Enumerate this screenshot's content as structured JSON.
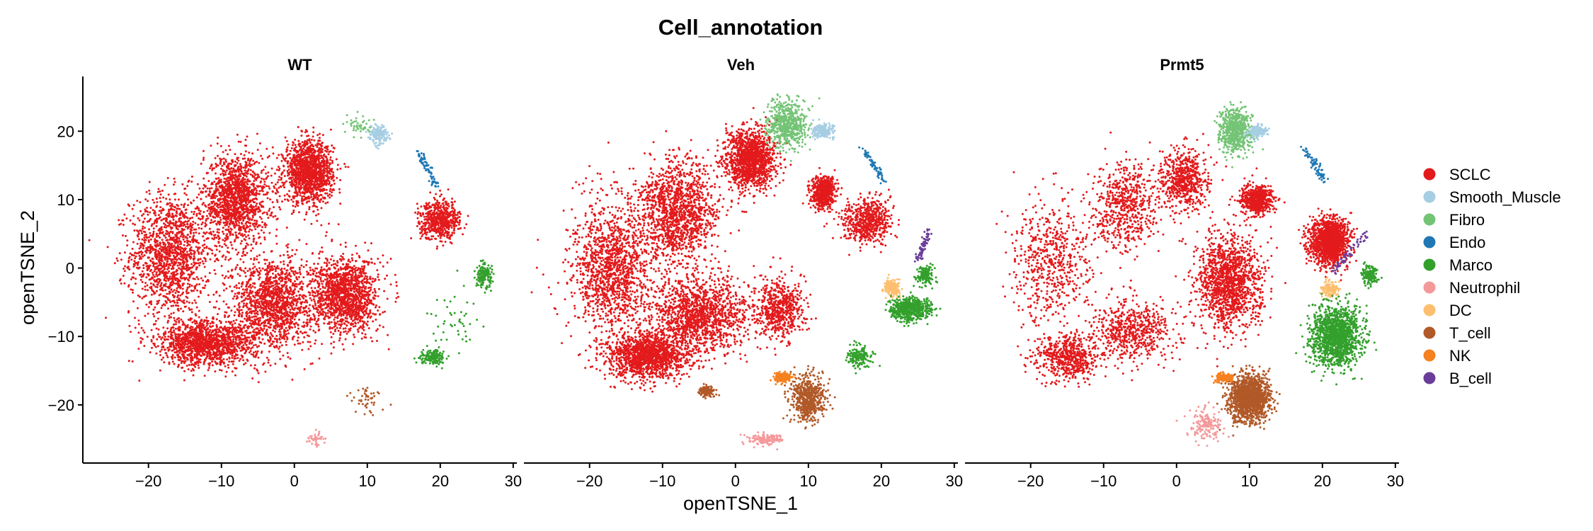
{
  "chart_data": {
    "type": "scatter",
    "title": "Cell_annotation",
    "xlabel": "openTSNE_1",
    "ylabel": "openTSNE_2",
    "xlim": [
      -29,
      30.5
    ],
    "ylim": [
      -28.5,
      28
    ],
    "xticks": [
      -20,
      -10,
      0,
      10,
      20,
      30
    ],
    "xtick_labels": [
      "−20",
      "−10",
      "0",
      "10",
      "20",
      "30"
    ],
    "yticks": [
      20,
      10,
      0,
      -10,
      -20
    ],
    "ytick_labels": [
      "20",
      "10",
      "0",
      "−10",
      "−20"
    ],
    "grid": false,
    "legend_position": "right",
    "categories": [
      {
        "name": "SCLC",
        "color": "#E31A1C"
      },
      {
        "name": "Smooth_Muscle",
        "color": "#A6CEE3"
      },
      {
        "name": "Fibro",
        "color": "#74C476"
      },
      {
        "name": "Endo",
        "color": "#1F78B4"
      },
      {
        "name": "Marco",
        "color": "#33A02C"
      },
      {
        "name": "Neutrophil",
        "color": "#F4999A"
      },
      {
        "name": "DC",
        "color": "#FDBF6F"
      },
      {
        "name": "T_cell",
        "color": "#B15928"
      },
      {
        "name": "NK",
        "color": "#F5811F"
      },
      {
        "name": "B_cell",
        "color": "#6A3D9A"
      }
    ],
    "panels": [
      {
        "name": "WT",
        "clusters": [
          {
            "category": "SCLC",
            "center": [
              -17,
              2
            ],
            "spread": [
              5,
              8
            ],
            "density": "high"
          },
          {
            "category": "SCLC",
            "center": [
              -8,
              10
            ],
            "spread": [
              4,
              6
            ],
            "density": "high"
          },
          {
            "category": "SCLC",
            "center": [
              2,
              14
            ],
            "spread": [
              3,
              4
            ],
            "density": "high"
          },
          {
            "category": "SCLC",
            "center": [
              -3,
              -5
            ],
            "spread": [
              5,
              6
            ],
            "density": "high"
          },
          {
            "category": "SCLC",
            "center": [
              7,
              -4
            ],
            "spread": [
              4,
              5
            ],
            "density": "high"
          },
          {
            "category": "SCLC",
            "center": [
              -12,
              -11
            ],
            "spread": [
              6,
              3
            ],
            "density": "high"
          },
          {
            "category": "SCLC",
            "center": [
              20,
              7
            ],
            "spread": [
              2.5,
              2.5
            ],
            "density": "medium"
          },
          {
            "category": "Smooth_Muscle",
            "center": [
              11.5,
              19.5
            ],
            "spread": [
              1.2,
              1.2
            ],
            "density": "low"
          },
          {
            "category": "Fibro",
            "center": [
              9,
              21
            ],
            "spread": [
              1.5,
              1.5
            ],
            "density": "sparse"
          },
          {
            "category": "Endo",
            "center": [
              18,
              15
            ],
            "spread": [
              [
                17,
                17
              ],
              [
                19.5,
                12
              ]
            ],
            "density": "line"
          },
          {
            "category": "Marco",
            "center": [
              26,
              -1
            ],
            "spread": [
              1,
              1.5
            ],
            "density": "low"
          },
          {
            "category": "Marco",
            "center": [
              19,
              -13
            ],
            "spread": [
              1.5,
              1
            ],
            "density": "low"
          },
          {
            "category": "Marco",
            "center": [
              22,
              -7
            ],
            "spread": [
              3,
              4
            ],
            "density": "sparse"
          },
          {
            "category": "Neutrophil",
            "center": [
              3,
              -25
            ],
            "spread": [
              1,
              1
            ],
            "density": "sparse"
          },
          {
            "category": "T_cell",
            "center": [
              10,
              -19
            ],
            "spread": [
              2,
              2
            ],
            "density": "sparse"
          }
        ]
      },
      {
        "name": "Veh",
        "clusters": [
          {
            "category": "SCLC",
            "center": [
              -17,
              0
            ],
            "spread": [
              5,
              9
            ],
            "density": "high"
          },
          {
            "category": "SCLC",
            "center": [
              -8,
              8
            ],
            "spread": [
              5,
              7
            ],
            "density": "high"
          },
          {
            "category": "SCLC",
            "center": [
              2,
              16
            ],
            "spread": [
              3,
              4
            ],
            "density": "high"
          },
          {
            "category": "SCLC",
            "center": [
              -5,
              -7
            ],
            "spread": [
              6,
              5
            ],
            "density": "high"
          },
          {
            "category": "SCLC",
            "center": [
              6,
              -6
            ],
            "spread": [
              3,
              4
            ],
            "density": "medium"
          },
          {
            "category": "SCLC",
            "center": [
              -12,
              -13
            ],
            "spread": [
              5,
              3
            ],
            "density": "high"
          },
          {
            "category": "SCLC",
            "center": [
              18,
              7
            ],
            "spread": [
              3,
              3
            ],
            "density": "medium"
          },
          {
            "category": "SCLC",
            "center": [
              12,
              11
            ],
            "spread": [
              1.5,
              2
            ],
            "density": "medium"
          },
          {
            "category": "Fibro",
            "center": [
              7,
              21
            ],
            "spread": [
              2.5,
              3
            ],
            "density": "medium"
          },
          {
            "category": "Smooth_Muscle",
            "center": [
              12,
              20
            ],
            "spread": [
              1.5,
              1
            ],
            "density": "low"
          },
          {
            "category": "Endo",
            "center": [
              19,
              15
            ],
            "spread": [
              [
                17.5,
                17.5
              ],
              [
                20.5,
                12.5
              ]
            ],
            "density": "line"
          },
          {
            "category": "B_cell",
            "center": [
              26,
              3
            ],
            "spread": [
              [
                25,
                1
              ],
              [
                26.5,
                5.5
              ]
            ],
            "density": "line"
          },
          {
            "category": "Marco",
            "center": [
              26,
              -1
            ],
            "spread": [
              1,
              1.2
            ],
            "density": "low"
          },
          {
            "category": "DC",
            "center": [
              21.5,
              -3
            ],
            "spread": [
              1,
              1
            ],
            "density": "low"
          },
          {
            "category": "Marco",
            "center": [
              24,
              -6
            ],
            "spread": [
              2.5,
              1.5
            ],
            "density": "medium"
          },
          {
            "category": "Marco",
            "center": [
              17,
              -13
            ],
            "spread": [
              1.5,
              1.5
            ],
            "density": "low"
          },
          {
            "category": "T_cell",
            "center": [
              10,
              -19
            ],
            "spread": [
              2,
              3
            ],
            "density": "medium"
          },
          {
            "category": "NK",
            "center": [
              6.5,
              -16
            ],
            "spread": [
              1,
              0.6
            ],
            "density": "low"
          },
          {
            "category": "T_cell",
            "center": [
              -4,
              -18
            ],
            "spread": [
              1,
              0.6
            ],
            "density": "low"
          },
          {
            "category": "Neutrophil",
            "center": [
              4,
              -25
            ],
            "spread": [
              2,
              0.7
            ],
            "density": "low"
          }
        ]
      },
      {
        "name": "Prmt5",
        "clusters": [
          {
            "category": "SCLC",
            "center": [
              -17,
              1
            ],
            "spread": [
              5,
              8
            ],
            "density": "medium"
          },
          {
            "category": "SCLC",
            "center": [
              -7,
              9
            ],
            "spread": [
              4,
              6
            ],
            "density": "medium"
          },
          {
            "category": "SCLC",
            "center": [
              1,
              13
            ],
            "spread": [
              3,
              4
            ],
            "density": "medium"
          },
          {
            "category": "SCLC",
            "center": [
              7,
              -2
            ],
            "spread": [
              4,
              6
            ],
            "density": "high"
          },
          {
            "category": "SCLC",
            "center": [
              -6,
              -9
            ],
            "spread": [
              5,
              4
            ],
            "density": "medium"
          },
          {
            "category": "SCLC",
            "center": [
              -15,
              -13
            ],
            "spread": [
              4,
              3
            ],
            "density": "medium"
          },
          {
            "category": "SCLC",
            "center": [
              21,
              4
            ],
            "spread": [
              2.5,
              3
            ],
            "density": "high"
          },
          {
            "category": "SCLC",
            "center": [
              11,
              10
            ],
            "spread": [
              2,
              2
            ],
            "density": "medium"
          },
          {
            "category": "Fibro",
            "center": [
              8,
              20
            ],
            "spread": [
              2,
              3
            ],
            "density": "medium"
          },
          {
            "category": "Smooth_Muscle",
            "center": [
              11,
              20
            ],
            "spread": [
              1.2,
              0.8
            ],
            "density": "low"
          },
          {
            "category": "Endo",
            "center": [
              19,
              15
            ],
            "spread": [
              [
                17.5,
                17.5
              ],
              [
                20.5,
                12.5
              ]
            ],
            "density": "line"
          },
          {
            "category": "B_cell",
            "center": [
              24,
              2
            ],
            "spread": [
              [
                21.5,
                -0.5
              ],
              [
                26,
                5
              ]
            ],
            "density": "line"
          },
          {
            "category": "Marco",
            "center": [
              26.5,
              -1
            ],
            "spread": [
              1,
              1.2
            ],
            "density": "low"
          },
          {
            "category": "DC",
            "center": [
              21,
              -3
            ],
            "spread": [
              1,
              1
            ],
            "density": "low"
          },
          {
            "category": "Marco",
            "center": [
              22,
              -10
            ],
            "spread": [
              3,
              4
            ],
            "density": "high"
          },
          {
            "category": "T_cell",
            "center": [
              10,
              -19
            ],
            "spread": [
              2.5,
              3
            ],
            "density": "high"
          },
          {
            "category": "NK",
            "center": [
              6.5,
              -16
            ],
            "spread": [
              1,
              0.6
            ],
            "density": "low"
          },
          {
            "category": "Neutrophil",
            "center": [
              4,
              -23
            ],
            "spread": [
              2,
              2
            ],
            "density": "low"
          }
        ]
      }
    ]
  }
}
